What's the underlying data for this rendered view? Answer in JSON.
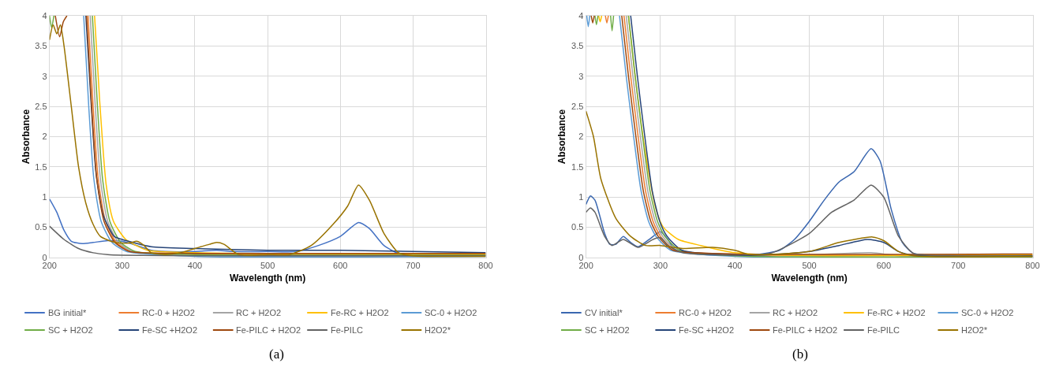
{
  "chart_data": [
    {
      "type": "line",
      "xlabel": "Wavelength (nm)",
      "ylabel": "Absorbance",
      "xlim": [
        200,
        800
      ],
      "ylim": [
        0,
        4
      ],
      "xticks": [
        200,
        300,
        400,
        500,
        600,
        700,
        800
      ],
      "yticks": [
        0,
        0.5,
        1,
        1.5,
        2,
        2.5,
        3,
        3.5,
        4
      ],
      "grid": true,
      "legend": "bottom",
      "annotations": [
        "(a)"
      ],
      "series": [
        {
          "name": "BG initial*",
          "color": "#4472c4",
          "x": [
            200,
            210,
            220,
            230,
            245,
            260,
            280,
            300,
            320,
            340,
            360,
            400,
            430,
            450,
            500,
            540,
            570,
            600,
            625,
            640,
            660,
            680,
            700,
            800
          ],
          "values": [
            0.97,
            0.75,
            0.45,
            0.27,
            0.23,
            0.25,
            0.28,
            0.27,
            0.2,
            0.12,
            0.1,
            0.1,
            0.12,
            0.1,
            0.1,
            0.1,
            0.2,
            0.35,
            0.58,
            0.48,
            0.2,
            0.07,
            0.06,
            0.05
          ]
        },
        {
          "name": "RC-0 + H2O2",
          "color": "#ed7d31",
          "x": [
            253,
            260,
            267,
            277,
            292,
            312,
            400,
            800
          ],
          "values": [
            4,
            2.5,
            1.3,
            0.6,
            0.25,
            0.1,
            0.06,
            0.05
          ]
        },
        {
          "name": "RC + H2O2",
          "color": "#a5a5a5",
          "x": [
            256,
            263,
            270,
            280,
            295,
            315,
            800
          ],
          "values": [
            4,
            2.5,
            1.3,
            0.6,
            0.25,
            0.1,
            0.03
          ]
        },
        {
          "name": "Fe-RC + H2O2",
          "color": "#ffc000",
          "x": [
            262,
            269,
            278,
            288,
            305,
            335,
            400,
            800
          ],
          "values": [
            4,
            2.6,
            1.2,
            0.6,
            0.3,
            0.12,
            0.08,
            0.06
          ]
        },
        {
          "name": "SC-0 + H2O2",
          "color": "#5b9bd5",
          "x": [
            247,
            254,
            261,
            271,
            286,
            306,
            400,
            800
          ],
          "values": [
            4,
            2.5,
            1.3,
            0.6,
            0.25,
            0.1,
            0.02,
            0.02
          ]
        },
        {
          "name": "SC + H2O2",
          "color": "#70ad47",
          "x": [
            200,
            203,
            206,
            230,
            259,
            266,
            273,
            283,
            298,
            318,
            400,
            800
          ],
          "values": [
            4,
            3.8,
            4,
            null,
            4,
            2.5,
            1.3,
            0.6,
            0.25,
            0.1,
            0.05,
            0.04
          ]
        },
        {
          "name": "Fe-SC +H2O2",
          "color": "#264478",
          "x": [
            250,
            257,
            264,
            274,
            289,
            300,
            340,
            400,
            500,
            600,
            700,
            800
          ],
          "values": [
            4,
            2.6,
            1.4,
            0.7,
            0.35,
            0.3,
            0.18,
            0.15,
            0.12,
            0.12,
            0.1,
            0.08
          ]
        },
        {
          "name": "Fe-PILC + H2O2",
          "color": "#9e480e",
          "x": [
            208,
            214,
            219,
            224,
            235,
            251,
            258,
            265,
            275,
            290,
            310,
            400,
            800
          ],
          "values": [
            4,
            3.65,
            3.9,
            4,
            null,
            4,
            2.5,
            1.3,
            0.6,
            0.25,
            0.1,
            0.07,
            0.07
          ]
        },
        {
          "name": "Fe-PILC",
          "color": "#636363",
          "x": [
            200,
            220,
            240,
            260,
            280,
            300,
            400,
            800
          ],
          "values": [
            0.52,
            0.3,
            0.15,
            0.08,
            0.05,
            0.04,
            0.03,
            0.03
          ]
        },
        {
          "name": "H2O2*",
          "color": "#997300",
          "x": [
            200,
            205,
            210,
            215,
            220,
            230,
            240,
            250,
            260,
            270,
            290,
            310,
            320,
            330,
            340,
            360,
            380,
            400,
            420,
            430,
            440,
            460,
            500,
            530,
            560,
            590,
            610,
            625,
            640,
            660,
            680,
            700,
            800
          ],
          "values": [
            3.6,
            3.85,
            3.7,
            3.85,
            3.5,
            2.5,
            1.5,
            0.9,
            0.55,
            0.35,
            0.25,
            0.24,
            0.27,
            0.2,
            0.08,
            0.05,
            0.08,
            0.15,
            0.22,
            0.25,
            0.22,
            0.05,
            0.05,
            0.05,
            0.2,
            0.55,
            0.85,
            1.2,
            0.95,
            0.4,
            0.08,
            0.03,
            0.02
          ]
        }
      ]
    },
    {
      "type": "line",
      "xlabel": "Wavelength (nm)",
      "ylabel": "Absorbance",
      "xlim": [
        200,
        800
      ],
      "ylim": [
        0,
        4
      ],
      "xticks": [
        200,
        300,
        400,
        500,
        600,
        700,
        800
      ],
      "yticks": [
        0,
        0.5,
        1,
        1.5,
        2,
        2.5,
        3,
        3.5,
        4
      ],
      "grid": true,
      "legend": "bottom",
      "annotations": [
        "(b)"
      ],
      "series": [
        {
          "name": "CV initial*",
          "color": "#3a67b0",
          "x": [
            200,
            206,
            212,
            225,
            232,
            240,
            250,
            260,
            270,
            285,
            300,
            310,
            320,
            350,
            400,
            430,
            460,
            480,
            500,
            520,
            540,
            560,
            583,
            595,
            610,
            625,
            640,
            700,
            800
          ],
          "values": [
            0.88,
            1.02,
            0.95,
            0.4,
            0.22,
            0.22,
            0.35,
            0.25,
            0.18,
            0.3,
            0.43,
            0.3,
            0.12,
            0.06,
            0.04,
            0.05,
            0.12,
            0.3,
            0.6,
            0.95,
            1.25,
            1.42,
            1.8,
            1.6,
            0.8,
            0.25,
            0.07,
            0.03,
            0.02
          ]
        },
        {
          "name": "RC-0 + H2O2",
          "color": "#ed7d31",
          "x": [
            226,
            228,
            230,
            240,
            251,
            260,
            270,
            280,
            290,
            300,
            320,
            400,
            800
          ],
          "values": [
            4,
            3.88,
            4,
            null,
            4,
            3.0,
            2.0,
            1.1,
            0.6,
            0.35,
            0.12,
            0.05,
            0.04
          ]
        },
        {
          "name": "RC + H2O2",
          "color": "#a5a5a5",
          "x": [
            254,
            263,
            273,
            283,
            293,
            303,
            323,
            500,
            583,
            620,
            800
          ],
          "values": [
            4,
            3.0,
            2.0,
            1.1,
            0.6,
            0.35,
            0.12,
            0.05,
            0.08,
            0.03,
            0.03
          ]
        },
        {
          "name": "Fe-RC + H2O2",
          "color": "#ffc000",
          "x": [
            217,
            219,
            221,
            235,
            257,
            266,
            279,
            294,
            304,
            324,
            354,
            400,
            500,
            800
          ],
          "values": [
            4,
            3.9,
            4,
            null,
            4,
            3.0,
            1.8,
            0.8,
            0.5,
            0.3,
            0.2,
            0.08,
            0.03,
            0.05
          ]
        },
        {
          "name": "SC-0 + H2O2",
          "color": "#5b9bd5",
          "x": [
            201,
            203,
            205,
            225,
            245,
            254,
            264,
            274,
            284,
            294,
            314,
            400,
            800
          ],
          "values": [
            4,
            3.82,
            4,
            null,
            4,
            3.0,
            2.0,
            1.1,
            0.6,
            0.35,
            0.12,
            0.02,
            0.02
          ]
        },
        {
          "name": "SC + H2O2",
          "color": "#70ad47",
          "x": [
            212,
            214,
            216,
            225,
            233,
            235,
            237,
            245,
            257,
            266,
            276,
            286,
            296,
            306,
            326,
            400,
            800
          ],
          "values": [
            4,
            3.85,
            4,
            null,
            4,
            3.75,
            4,
            null,
            4,
            3.0,
            2.0,
            1.1,
            0.6,
            0.35,
            0.12,
            0.03,
            0.01
          ]
        },
        {
          "name": "Fe-SC +H2O2",
          "color": "#264478",
          "x": [
            260,
            269,
            279,
            289,
            299,
            309,
            329,
            400,
            450,
            500,
            540,
            578,
            600,
            620,
            640,
            800
          ],
          "values": [
            4,
            3.0,
            2.0,
            1.1,
            0.6,
            0.35,
            0.12,
            0.04,
            0.05,
            0.1,
            0.2,
            0.3,
            0.25,
            0.1,
            0.04,
            0.03
          ]
        },
        {
          "name": "Fe-PILC + H2O2",
          "color": "#9e480e",
          "x": [
            207,
            209,
            211,
            230,
            248,
            257,
            267,
            277,
            287,
            297,
            317,
            400,
            800
          ],
          "values": [
            4,
            3.88,
            4,
            null,
            4,
            3.0,
            2.0,
            1.1,
            0.6,
            0.35,
            0.12,
            0.06,
            0.06
          ]
        },
        {
          "name": "Fe-PILC",
          "color": "#636363",
          "x": [
            200,
            206,
            212,
            225,
            235,
            250,
            270,
            290,
            300,
            310,
            330,
            400,
            450,
            500,
            530,
            560,
            583,
            600,
            620,
            640,
            700,
            800
          ],
          "values": [
            0.75,
            0.82,
            0.75,
            0.35,
            0.2,
            0.3,
            0.17,
            0.3,
            0.33,
            0.2,
            0.08,
            0.04,
            0.08,
            0.4,
            0.75,
            0.95,
            1.2,
            1.0,
            0.35,
            0.07,
            0.03,
            0.02
          ]
        },
        {
          "name": "H2O2*",
          "color": "#997300",
          "x": [
            200,
            210,
            220,
            240,
            260,
            280,
            300,
            330,
            370,
            400,
            420,
            500,
            540,
            585,
            600,
            620,
            640,
            800
          ],
          "values": [
            2.42,
            2.0,
            1.3,
            0.65,
            0.35,
            0.2,
            0.2,
            0.15,
            0.17,
            0.12,
            0.05,
            0.1,
            0.25,
            0.34,
            0.28,
            0.1,
            0.03,
            0.02
          ]
        }
      ]
    }
  ]
}
